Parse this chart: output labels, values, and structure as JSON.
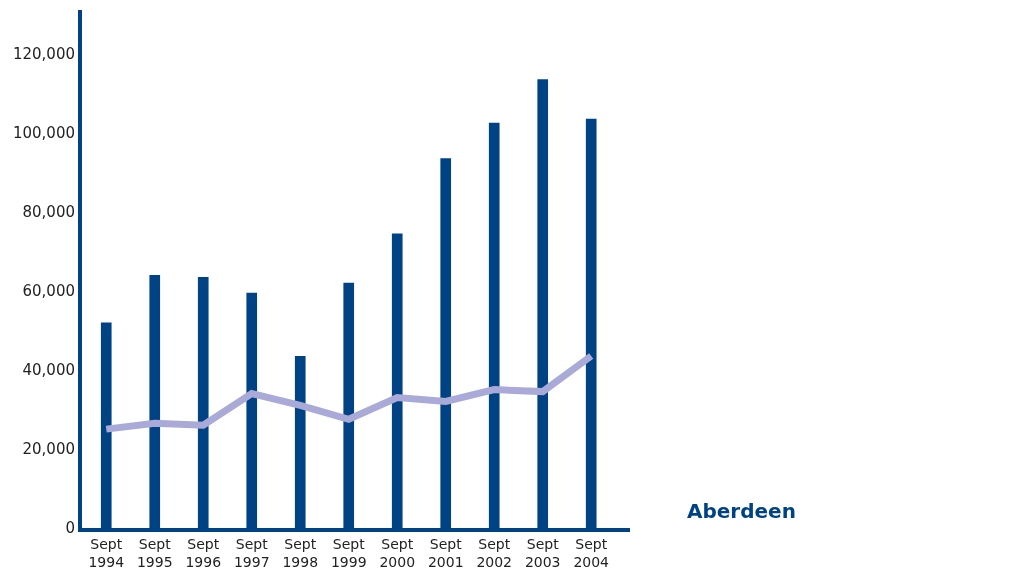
{
  "chart_data": {
    "type": "bar",
    "categories": [
      "Sept 1994",
      "Sept 1995",
      "Sept 1996",
      "Sept 1997",
      "Sept 1998",
      "Sept 1999",
      "Sept 2000",
      "Sept 2001",
      "Sept 2002",
      "Sept 2003",
      "Sept 2004"
    ],
    "series": [
      {
        "color": "#004385",
        "values": [
          52000,
          64000,
          63500,
          59500,
          43500,
          62000,
          74500,
          93500,
          102500,
          113500,
          103500
        ]
      },
      {
        "type": "line",
        "color": "#aaaad8",
        "values": [
          25000,
          26500,
          26000,
          34000,
          31000,
          27500,
          33000,
          32000,
          35000,
          34500,
          43500
        ]
      }
    ],
    "ylim": [
      0,
      131000
    ],
    "yticks": [
      0,
      {
        "value": 20000,
        "label": "20,000"
      },
      {
        "value": 40000,
        "label": "40,000"
      },
      {
        "value": 60000,
        "label": "60,000"
      },
      {
        "value": 80000,
        "label": "80,000"
      },
      {
        "value": 100000,
        "label": "100,000"
      },
      {
        "value": 120000,
        "label": "120,000"
      }
    ],
    "annotations": [
      "Aberdeen"
    ]
  }
}
